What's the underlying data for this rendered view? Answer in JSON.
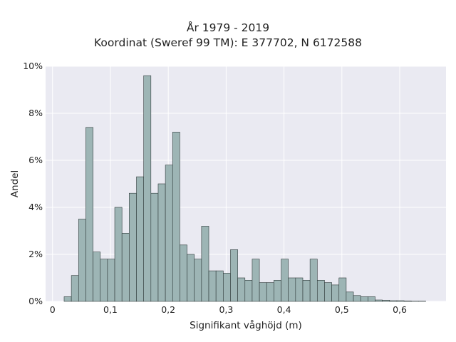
{
  "chart_data": {
    "type": "bar",
    "title": "År 1979 - 2019",
    "subtitle": "Koordinat (Sweref 99 TM): E 377702, N 6172588",
    "xlabel": "Signifikant våghöjd (m)",
    "ylabel": "Andel",
    "xlim": [
      -0.012,
      0.68
    ],
    "ylim": [
      0,
      10
    ],
    "bin_width": 0.0125,
    "bin_start": 0.02,
    "x_ticks": [
      0,
      0.1,
      0.2,
      0.3,
      0.4,
      0.5,
      0.6
    ],
    "x_tick_labels": [
      "0",
      "0,1",
      "0,2",
      "0,3",
      "0,4",
      "0,5",
      "0,6"
    ],
    "y_ticks": [
      0,
      2,
      4,
      6,
      8,
      10
    ],
    "y_tick_labels": [
      "0%",
      "2%",
      "4%",
      "6%",
      "8%",
      "10%"
    ],
    "values": [
      0.2,
      1.1,
      3.5,
      7.4,
      2.1,
      1.8,
      1.8,
      4.0,
      2.9,
      4.6,
      5.3,
      9.6,
      4.6,
      5.0,
      5.8,
      7.2,
      2.4,
      2.0,
      1.8,
      3.2,
      1.3,
      1.3,
      1.2,
      2.2,
      1.0,
      0.9,
      1.8,
      0.8,
      0.8,
      0.9,
      1.8,
      1.0,
      1.0,
      0.9,
      1.8,
      0.9,
      0.8,
      0.7,
      1.0,
      0.4,
      0.25,
      0.2,
      0.2,
      0.06,
      0.05,
      0.03,
      0.03,
      0.02,
      0.01,
      0.01
    ],
    "grid": true,
    "legend": "none",
    "colors": {
      "bar_fill": "#9db5b5",
      "bar_edge": "#2f3a3a",
      "plot_background": "#eaeaf2",
      "grid": "#ffffff"
    }
  }
}
